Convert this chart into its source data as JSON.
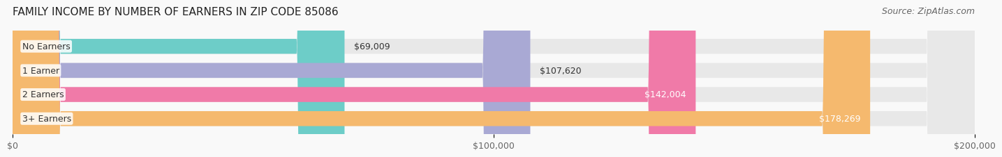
{
  "title": "FAMILY INCOME BY NUMBER OF EARNERS IN ZIP CODE 85086",
  "source": "Source: ZipAtlas.com",
  "categories": [
    "No Earners",
    "1 Earner",
    "2 Earners",
    "3+ Earners"
  ],
  "values": [
    69009,
    107620,
    142004,
    178269
  ],
  "bar_colors": [
    "#6dcdc8",
    "#a9a9d4",
    "#f07aa8",
    "#f5b96e"
  ],
  "bar_bg_color": "#f0f0f0",
  "label_colors": [
    "#333333",
    "#333333",
    "#ffffff",
    "#ffffff"
  ],
  "value_labels": [
    "$69,009",
    "$107,620",
    "$142,004",
    "$178,269"
  ],
  "xlim": [
    0,
    200000
  ],
  "xticks": [
    0,
    100000,
    200000
  ],
  "xtick_labels": [
    "$0",
    "$100,000",
    "$200,000"
  ],
  "title_fontsize": 11,
  "source_fontsize": 9,
  "label_fontsize": 9,
  "value_fontsize": 9,
  "tick_fontsize": 9,
  "background_color": "#f9f9f9",
  "bar_bg_alpha": 1.0,
  "figsize": [
    14.06,
    2.33
  ]
}
